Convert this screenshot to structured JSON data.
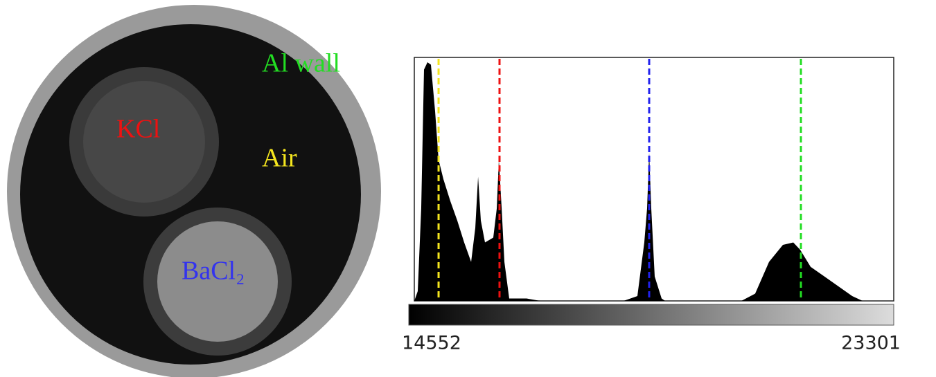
{
  "image": {
    "labels": [
      {
        "text": "Al wall",
        "color": "#22dd22"
      },
      {
        "text": "KCl",
        "color": "#ee1111"
      },
      {
        "text": "Air",
        "color": "#f5e61e"
      },
      {
        "text": "BaCl₂",
        "color": "#3333ee"
      }
    ]
  },
  "chart_data": {
    "type": "area",
    "color": "#000000",
    "x": [
      14552,
      14615,
      14678,
      14729,
      14792,
      14855,
      14931,
      14995,
      15083,
      15209,
      15336,
      15462,
      15589,
      15665,
      15716,
      15766,
      15842,
      15993,
      16057,
      16095,
      16146,
      16196,
      16284,
      16600,
      16853,
      18370,
      18623,
      18749,
      18800,
      18838,
      18876,
      18939,
      19065,
      19129,
      20520,
      20772,
      21025,
      21278,
      21468,
      21594,
      21784,
      22037,
      22290,
      22543,
      22733
    ],
    "values": [
      0,
      4,
      38,
      95,
      98,
      97,
      78,
      58,
      50,
      41,
      33,
      24,
      16,
      30,
      51,
      33,
      24,
      26,
      38,
      58,
      38,
      16,
      1,
      1,
      0,
      0,
      2,
      24,
      38,
      61,
      38,
      10,
      1,
      0,
      0,
      3,
      16,
      23,
      24,
      21,
      14,
      10,
      6,
      2,
      0
    ],
    "xlim": [
      14552,
      23301
    ],
    "xticks": [
      14552,
      23301
    ],
    "ylim": [
      0,
      100
    ],
    "markers": [
      {
        "value": 14995,
        "color": "#f5e61e"
      },
      {
        "value": 16107,
        "color": "#ee1111"
      },
      {
        "value": 18838,
        "color": "#2222ee"
      },
      {
        "value": 21607,
        "color": "#22dd22"
      }
    ]
  }
}
